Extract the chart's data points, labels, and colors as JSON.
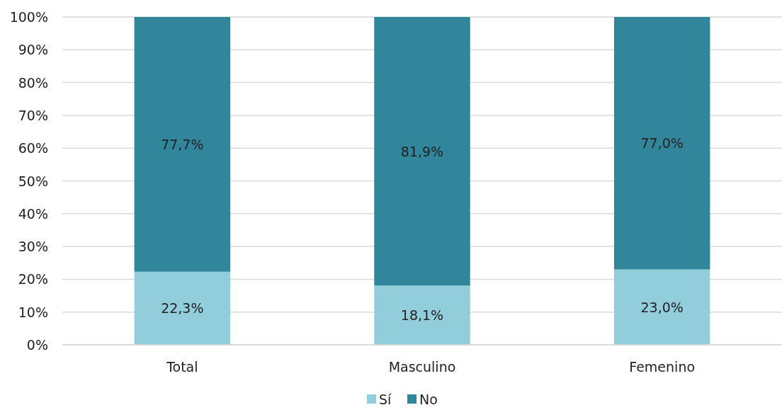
{
  "chart_data": {
    "type": "bar",
    "stacked": true,
    "categories": [
      "Total",
      "Masculino",
      "Femenino"
    ],
    "series": [
      {
        "name": "Sí",
        "color": "#92cddc",
        "values": [
          22.3,
          18.1,
          23.0
        ],
        "value_labels": [
          "22,3%",
          "18,1%",
          "23,0%"
        ]
      },
      {
        "name": "No",
        "color": "#31869b",
        "values": [
          77.7,
          81.9,
          77.0
        ],
        "value_labels": [
          "77,7%",
          "81,9%",
          "77,0%"
        ]
      }
    ],
    "ylim": [
      0,
      100
    ],
    "yticks": [
      {
        "value": 0,
        "label": "0%"
      },
      {
        "value": 10,
        "label": "10%"
      },
      {
        "value": 20,
        "label": "20%"
      },
      {
        "value": 30,
        "label": "30%"
      },
      {
        "value": 40,
        "label": "40%"
      },
      {
        "value": 50,
        "label": "50%"
      },
      {
        "value": 60,
        "label": "60%"
      },
      {
        "value": 70,
        "label": "70%"
      },
      {
        "value": 80,
        "label": "80%"
      },
      {
        "value": 90,
        "label": "90%"
      },
      {
        "value": 100,
        "label": "100%"
      }
    ],
    "grid": "y",
    "legend": "bottom"
  }
}
